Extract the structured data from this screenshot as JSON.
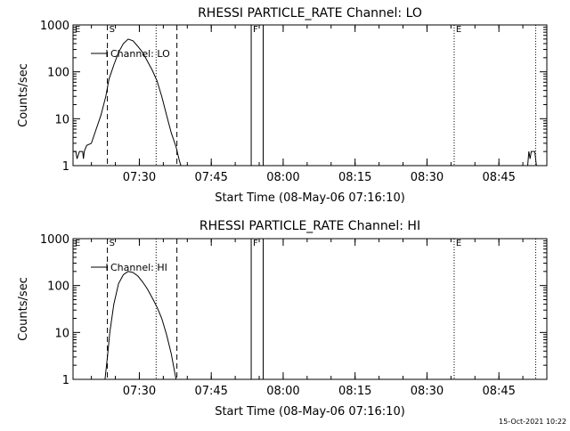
{
  "stamp": "15-Oct-2021 10:22",
  "chart_data": [
    {
      "type": "line",
      "title": "RHESSI PARTICLE_RATE Channel: LO",
      "xlabel": "Start Time (08-May-06 07:16:10)",
      "ylabel": "Counts/sec",
      "yscale": "log",
      "ylim": [
        1,
        1000
      ],
      "xlim": [
        "07:16:10",
        "08:55:00"
      ],
      "ytick_labels": [
        "1000",
        "100",
        "10",
        "1"
      ],
      "xtick_labels": [
        "07:30",
        "07:45",
        "08:00",
        "08:15",
        "08:30",
        "08:45"
      ],
      "legend": {
        "position": "top-left",
        "entries": [
          "Channel: LO"
        ]
      },
      "markers": [
        {
          "label": "E",
          "time": "07:16:10",
          "style": "dotted"
        },
        {
          "label": "S",
          "time": "07:23:20",
          "style": "dashed"
        },
        {
          "label": "",
          "time": "07:33:30",
          "style": "dotted"
        },
        {
          "label": "",
          "time": "07:37:50",
          "style": "dashed"
        },
        {
          "label": "F",
          "time": "07:53:20",
          "style": "solid"
        },
        {
          "label": "",
          "time": "07:55:50",
          "style": "solid"
        },
        {
          "label": "E",
          "time": "08:35:40",
          "style": "dotted"
        },
        {
          "label": "",
          "time": "08:52:40",
          "style": "dotted"
        }
      ],
      "series": [
        {
          "name": "Channel: LO",
          "points": [
            [
              "07:16:10",
              2
            ],
            [
              "07:16:45",
              2
            ],
            [
              "07:17:00",
              1.4
            ],
            [
              "07:17:30",
              2
            ],
            [
              "07:18:10",
              2
            ],
            [
              "07:18:20",
              1.4
            ],
            [
              "07:18:30",
              2
            ],
            [
              "07:19:00",
              2.7
            ],
            [
              "07:20:00",
              3
            ],
            [
              "07:21:00",
              6
            ],
            [
              "07:22:00",
              12
            ],
            [
              "07:23:00",
              30
            ],
            [
              "07:23:40",
              70
            ],
            [
              "07:24:40",
              140
            ],
            [
              "07:25:40",
              260
            ],
            [
              "07:26:40",
              400
            ],
            [
              "07:27:40",
              500
            ],
            [
              "07:28:40",
              460
            ],
            [
              "07:29:40",
              350
            ],
            [
              "07:30:40",
              260
            ],
            [
              "07:31:40",
              170
            ],
            [
              "07:32:40",
              110
            ],
            [
              "07:33:40",
              65
            ],
            [
              "07:34:40",
              30
            ],
            [
              "07:35:40",
              12
            ],
            [
              "07:36:40",
              5
            ],
            [
              "07:37:40",
              2.5
            ],
            [
              "07:38:20",
              1.3
            ],
            [
              "07:38:40",
              1
            ]
          ]
        },
        {
          "name": "",
          "points": [
            [
              "08:51:00",
              1
            ],
            [
              "08:51:15",
              2
            ],
            [
              "08:51:30",
              1.4
            ],
            [
              "08:51:45",
              2
            ],
            [
              "08:52:30",
              2
            ],
            [
              "08:52:50",
              1
            ]
          ]
        }
      ]
    },
    {
      "type": "line",
      "title": "RHESSI PARTICLE_RATE Channel: HI",
      "xlabel": "Start Time (08-May-06 07:16:10)",
      "ylabel": "Counts/sec",
      "yscale": "log",
      "ylim": [
        1,
        1000
      ],
      "xlim": [
        "07:16:10",
        "08:55:00"
      ],
      "ytick_labels": [
        "1000",
        "100",
        "10",
        "1"
      ],
      "xtick_labels": [
        "07:30",
        "07:45",
        "08:00",
        "08:15",
        "08:30",
        "08:45"
      ],
      "legend": {
        "position": "top-left",
        "entries": [
          "Channel: HI"
        ]
      },
      "markers": [
        {
          "label": "E",
          "time": "07:16:10",
          "style": "dotted"
        },
        {
          "label": "S",
          "time": "07:23:20",
          "style": "dashed"
        },
        {
          "label": "",
          "time": "07:33:30",
          "style": "dotted"
        },
        {
          "label": "",
          "time": "07:37:50",
          "style": "dashed"
        },
        {
          "label": "F",
          "time": "07:53:20",
          "style": "solid"
        },
        {
          "label": "",
          "time": "07:55:50",
          "style": "solid"
        },
        {
          "label": "E",
          "time": "08:35:40",
          "style": "dotted"
        },
        {
          "label": "",
          "time": "08:52:40",
          "style": "dotted"
        }
      ],
      "series": [
        {
          "name": "Channel: HI",
          "points": [
            [
              "07:22:50",
              1
            ],
            [
              "07:23:20",
              3
            ],
            [
              "07:23:50",
              10
            ],
            [
              "07:24:40",
              40
            ],
            [
              "07:25:40",
              110
            ],
            [
              "07:26:40",
              170
            ],
            [
              "07:27:40",
              200
            ],
            [
              "07:28:40",
              190
            ],
            [
              "07:29:40",
              160
            ],
            [
              "07:30:40",
              120
            ],
            [
              "07:31:40",
              85
            ],
            [
              "07:32:40",
              55
            ],
            [
              "07:33:40",
              35
            ],
            [
              "07:34:40",
              20
            ],
            [
              "07:35:40",
              9
            ],
            [
              "07:36:40",
              3.5
            ],
            [
              "07:37:20",
              1.5
            ],
            [
              "07:37:40",
              1
            ]
          ]
        }
      ]
    }
  ]
}
